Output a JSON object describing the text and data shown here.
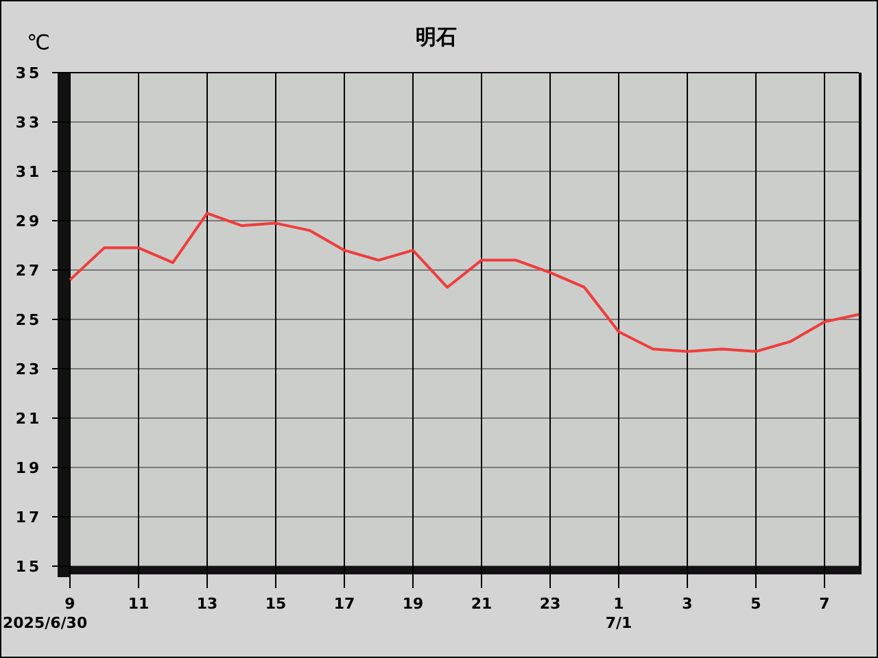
{
  "chart_data": {
    "type": "line",
    "title": "明石",
    "ylabel": "℃",
    "x": [
      "2025-06-30T09:00",
      "2025-06-30T10:00",
      "2025-06-30T11:00",
      "2025-06-30T12:00",
      "2025-06-30T13:00",
      "2025-06-30T14:00",
      "2025-06-30T15:00",
      "2025-06-30T16:00",
      "2025-06-30T17:00",
      "2025-06-30T18:00",
      "2025-06-30T19:00",
      "2025-06-30T20:00",
      "2025-06-30T21:00",
      "2025-06-30T22:00",
      "2025-06-30T23:00",
      "2025-07-01T00:00",
      "2025-07-01T01:00",
      "2025-07-01T02:00",
      "2025-07-01T03:00",
      "2025-07-01T04:00",
      "2025-07-01T05:00",
      "2025-07-01T06:00",
      "2025-07-01T07:00",
      "2025-07-01T08:00"
    ],
    "series": [
      {
        "color": "#f03c3c",
        "values": [
          26.6,
          27.9,
          27.9,
          27.3,
          29.3,
          28.8,
          28.9,
          28.6,
          27.8,
          27.4,
          27.8,
          26.3,
          27.4,
          27.4,
          26.9,
          26.3,
          24.5,
          23.8,
          23.7,
          23.8,
          23.7,
          24.1,
          24.9,
          25.2
        ]
      }
    ],
    "xlim": [
      "2025-06-30T09:00",
      "2025-07-01T08:00"
    ],
    "xticks": [
      {
        "value": "2025-06-30T09:00",
        "label": "9"
      },
      {
        "value": "2025-06-30T11:00",
        "label": "11"
      },
      {
        "value": "2025-06-30T13:00",
        "label": "13"
      },
      {
        "value": "2025-06-30T15:00",
        "label": "15"
      },
      {
        "value": "2025-06-30T17:00",
        "label": "17"
      },
      {
        "value": "2025-06-30T19:00",
        "label": "19"
      },
      {
        "value": "2025-06-30T21:00",
        "label": "21"
      },
      {
        "value": "2025-06-30T23:00",
        "label": "23"
      },
      {
        "value": "2025-07-01T01:00",
        "label": "1"
      },
      {
        "value": "2025-07-01T03:00",
        "label": "3"
      },
      {
        "value": "2025-07-01T05:00",
        "label": "5"
      },
      {
        "value": "2025-07-01T07:00",
        "label": "7"
      }
    ],
    "ylim": [
      15,
      35
    ],
    "yticks": [
      15,
      17,
      19,
      21,
      23,
      25,
      27,
      29,
      31,
      33,
      35
    ],
    "grid": true,
    "marker": "none",
    "line_style": "solid",
    "annotations": [
      "2025/6/30",
      "7/1"
    ]
  }
}
